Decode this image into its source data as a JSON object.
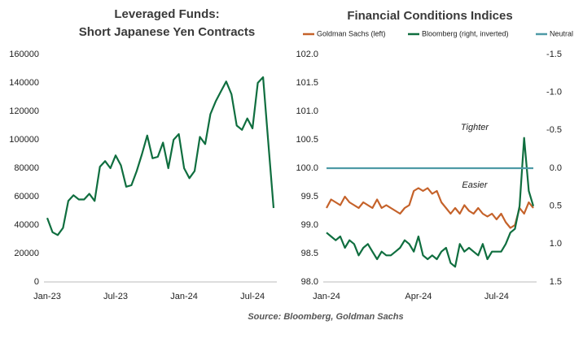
{
  "chart_data": [
    {
      "type": "line",
      "title": [
        "Leveraged Funds:",
        "Short Japanese Yen Contracts"
      ],
      "categories": [
        "Jan-23",
        null,
        null,
        null,
        null,
        null,
        null,
        null,
        null,
        null,
        null,
        null,
        null,
        "Jul-23",
        null,
        null,
        null,
        null,
        null,
        null,
        null,
        null,
        null,
        null,
        null,
        null,
        "Jan-24",
        null,
        null,
        null,
        null,
        null,
        null,
        null,
        null,
        null,
        null,
        null,
        null,
        "Jul-24",
        null,
        null,
        null,
        null
      ],
      "series": [
        {
          "name": "Short Japanese Yen Contracts",
          "color": "#0f6e3f",
          "values": [
            45000,
            35000,
            33000,
            38000,
            57000,
            61000,
            58000,
            58000,
            62000,
            57000,
            81000,
            85000,
            80000,
            89000,
            82000,
            67000,
            68000,
            78000,
            90000,
            103000,
            87000,
            88000,
            98000,
            80000,
            100000,
            104000,
            80000,
            73000,
            78000,
            102000,
            97000,
            118000,
            127000,
            134000,
            141000,
            132000,
            110000,
            107000,
            115000,
            108000,
            140000,
            144000,
            98000,
            52000
          ]
        }
      ],
      "ylim": [
        0,
        160000
      ],
      "yticks": [
        0,
        20000,
        40000,
        60000,
        80000,
        100000,
        120000,
        140000,
        160000
      ]
    },
    {
      "type": "line",
      "title": "Financial Conditions Indices",
      "categories": [
        "Jan-24",
        null,
        null,
        null,
        null,
        null,
        null,
        null,
        null,
        null,
        null,
        null,
        null,
        null,
        null,
        null,
        null,
        null,
        null,
        null,
        "Apr-24",
        null,
        null,
        null,
        null,
        null,
        null,
        null,
        null,
        null,
        null,
        null,
        null,
        null,
        null,
        null,
        null,
        "Jul-24",
        null,
        null,
        null,
        null,
        null,
        null,
        null,
        null
      ],
      "series": [
        {
          "name": "Goldman Sachs (left)",
          "color": "#c5622a",
          "values": [
            99.3,
            99.45,
            99.4,
            99.35,
            99.5,
            99.4,
            99.35,
            99.3,
            99.4,
            99.35,
            99.3,
            99.45,
            99.3,
            99.35,
            99.3,
            99.25,
            99.2,
            99.3,
            99.35,
            99.6,
            99.65,
            99.6,
            99.65,
            99.55,
            99.6,
            99.4,
            99.3,
            99.2,
            99.3,
            99.2,
            99.35,
            99.25,
            99.2,
            99.3,
            99.2,
            99.15,
            99.2,
            99.1,
            99.2,
            99.05,
            98.95,
            99.0,
            99.3,
            99.2,
            99.4,
            99.3
          ]
        },
        {
          "name": "Bloomberg (right, inverted)",
          "color": "#0f6e3f",
          "axis": "y2",
          "values": [
            0.85,
            0.9,
            0.95,
            0.9,
            1.05,
            0.95,
            1.0,
            1.15,
            1.05,
            1.0,
            1.1,
            1.2,
            1.1,
            1.15,
            1.15,
            1.1,
            1.05,
            0.95,
            1.0,
            1.1,
            0.9,
            1.15,
            1.2,
            1.15,
            1.2,
            1.1,
            1.05,
            1.25,
            1.3,
            1.0,
            1.1,
            1.05,
            1.1,
            1.15,
            1.0,
            1.2,
            1.1,
            1.1,
            1.1,
            1.0,
            0.85,
            0.8,
            0.5,
            -0.4,
            0.3,
            0.5
          ]
        },
        {
          "name": "Neutral",
          "color": "#4e9aa6",
          "values": [
            100,
            100,
            100,
            100,
            100,
            100,
            100,
            100,
            100,
            100,
            100,
            100,
            100,
            100,
            100,
            100,
            100,
            100,
            100,
            100,
            100,
            100,
            100,
            100,
            100,
            100,
            100,
            100,
            100,
            100,
            100,
            100,
            100,
            100,
            100,
            100,
            100,
            100,
            100,
            100,
            100,
            100,
            100,
            100,
            100,
            100
          ]
        }
      ],
      "ylim": [
        98,
        102
      ],
      "yticks": [
        {
          "value": 98,
          "label": "98.0"
        },
        98.5,
        {
          "value": 99,
          "label": "99.0"
        },
        99.5,
        {
          "value": 100,
          "label": "100.0"
        },
        100.5,
        {
          "value": 101,
          "label": "101.0"
        },
        101.5,
        {
          "value": 102,
          "label": "102.0"
        }
      ],
      "y2lim": [
        1.5,
        -1.5
      ],
      "y2ticks": [
        1.5,
        {
          "value": 1,
          "label": "1.0"
        },
        0.5,
        {
          "value": 0,
          "label": "0.0"
        },
        -0.5,
        {
          "value": -1,
          "label": "-1.0"
        },
        -1.5
      ],
      "annotations": [
        "Tighter",
        "Easier"
      ]
    }
  ],
  "source": "Source: Bloomberg, Goldman Sachs"
}
